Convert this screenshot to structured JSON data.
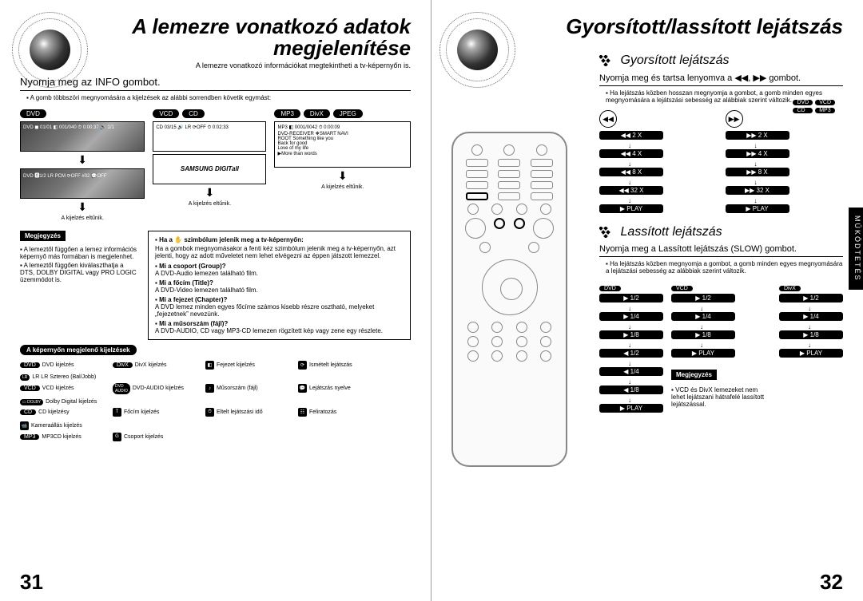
{
  "left": {
    "title_l1": "A lemezre vonatkozó adatok",
    "title_l2": "megjelenítése",
    "subtitle": "A lemezre vonatkozó információkat megtekintheti a tv-képernyőn is.",
    "press_info": "Nyomja meg az INFO gombot.",
    "press_info_note": "A gomb többszöri megnyomására a kijelzések az alábbi sorrendben követik egymást:",
    "labels": {
      "dvd": "DVD",
      "vcd": "VCD",
      "cd": "CD",
      "mp3": "MP3",
      "divx": "DivX",
      "jpeg": "JPEG"
    },
    "screen1_line": "DVD ◼ 01/01 ◧ 001/040 ⏱ 0:00:37 🔊 1/1",
    "screen2_line": "CD 03/15 🔊 LR ⟳OFF ⏱ 0:02:33",
    "screen2b_text": "SAMSUNG DIGITall",
    "screen3_lines": [
      "MP3 ◧ 0001/0042 ⏱ 0:00:09",
      "DVD-RECEIVER  ❖SMART NAVI",
      "ROOT   Something like you",
      "       Back for good",
      "       Love of my life",
      "       ▶More than words"
    ],
    "screen4_line": "DVD 🅶1/2 LR PCM ⟳OFF #02 💬OFF",
    "disp_elt": "A kijelzés eltűnik.",
    "hand_head": "Ha a ✋ szimbólum jelenik meg a tv-képernyőn:",
    "hand_text": "Ha a gombok megnyomásakor a fenti kéz szimbólum jelenik meg a tv-képernyőn, azt jelenti, hogy az adott műveletet nem lehet elvégezni az éppen játszott lemezzel.",
    "q1_t": "Mi a csoport (Group)?",
    "q1_a": "A DVD-Audio lemezen található film.",
    "q2_t": "Mi a főcím (Title)?",
    "q2_a": "A DVD-Video lemezen található film.",
    "q3_t": "Mi a fejezet (Chapter)?",
    "q3_a": "A DVD lemez minden egyes főcíme számos kisebb részre osztható, melyeket „fejezetnek” nevezünk.",
    "q4_t": "Mi a műsorszám (fájl)?",
    "q4_a": "A DVD-AUDIO, CD vagy MP3-CD lemezen rögzített kép vagy zene egy részlete.",
    "megj": "Megjegyzés",
    "megj1": "A lemeztől függően a lemez információs képernyő más formában is megjelenhet.",
    "megj2": "A lemeztől függően kiválaszthatja a DTS, DOLBY DIGITAL vagy PRO LOGIC üzemmódot is.",
    "legend_title": "A képernyőn megjelenő kijelzések",
    "legend": [
      [
        "DVD",
        "DVD kijelzés"
      ],
      [
        "DivX",
        "DivX kijelzés"
      ],
      [
        "◧",
        "Fejezet kijelzés"
      ],
      [
        "⟳",
        "Ismételt lejátszás"
      ],
      [
        "LR",
        "LR LR Sztereo (Bal/Jobb)"
      ],
      [
        "VCD",
        "VCD kijelzés"
      ],
      [
        "DVD\nAUDIO",
        "DVD-AUDIO kijelzés"
      ],
      [
        "♪",
        "Műsorszám (fájl)"
      ],
      [
        "💬",
        "Lejátszás nyelve"
      ],
      [
        "▭ DOLBY",
        "Dolby Digital kijelzés"
      ],
      [
        "CD",
        "CD kijelzésy"
      ],
      [
        "T",
        "Főcím kijelzés"
      ],
      [
        "⏱",
        "Eltelt lejátszási idő"
      ],
      [
        "☷",
        "Feliratozás"
      ],
      [
        "📹",
        "Kameraállás kijelzés"
      ],
      [
        "MP3",
        "MP3CD kijelzés"
      ],
      [
        "G",
        "Csoport kijelzés"
      ]
    ],
    "page_num": "31"
  },
  "right": {
    "title": "Gyorsított/lassított lejátszás",
    "badges": [
      "DVD",
      "VCD",
      "CD",
      "MP3"
    ],
    "side_tab": "MŰKÖDTETÉS",
    "sec1_title": "Gyorsított lejátszás",
    "sec1_instr": "Nyomja meg és tartsa lenyomva a ◀◀, ▶▶ gombot.",
    "sec1_note": "Ha lejátszás közben hosszan megnyomja a gombot, a gomb minden egyes megnyomására a lejátszási sebesség az alábbiak szerint változik.",
    "fast_icons": [
      "◀◀",
      "▶▶"
    ],
    "fast_col1": [
      "◀◀  2 X",
      "◀◀  4 X",
      "◀◀  8 X",
      "◀◀  32 X",
      "▶  PLAY"
    ],
    "fast_col2": [
      "▶▶  2 X",
      "▶▶  4 X",
      "▶▶  8 X",
      "▶▶  32 X",
      "▶  PLAY"
    ],
    "sec2_title": "Lassított lejátszás",
    "sec2_instr": "Nyomja meg a Lassított lejátszás (SLOW) gombot.",
    "sec2_note": "Ha lejátszás közben megnyomja a gombot, a gomb minden egyes megnyomására a lejátszási sebesség az alábbiak szerint változik.",
    "slow_heads": [
      "DVD",
      "VCD",
      "DivX"
    ],
    "slow_col1": [
      "▶  1/2",
      "▶  1/4",
      "▶  1/8",
      "◀  1/2",
      "◀  1/4",
      "◀  1/8",
      "▶  PLAY"
    ],
    "slow_col2": [
      "▶  1/2",
      "▶  1/4",
      "▶  1/8",
      "▶  PLAY"
    ],
    "slow_col3": [
      "▶  1/2",
      "▶  1/4",
      "▶  1/8",
      "▶  PLAY"
    ],
    "megj": "Megjegyzés",
    "megj_text": "VCD és DivX lemezeket nem lehet lejátszani hátrafelé lassított lejátszással.",
    "page_num": "32"
  }
}
